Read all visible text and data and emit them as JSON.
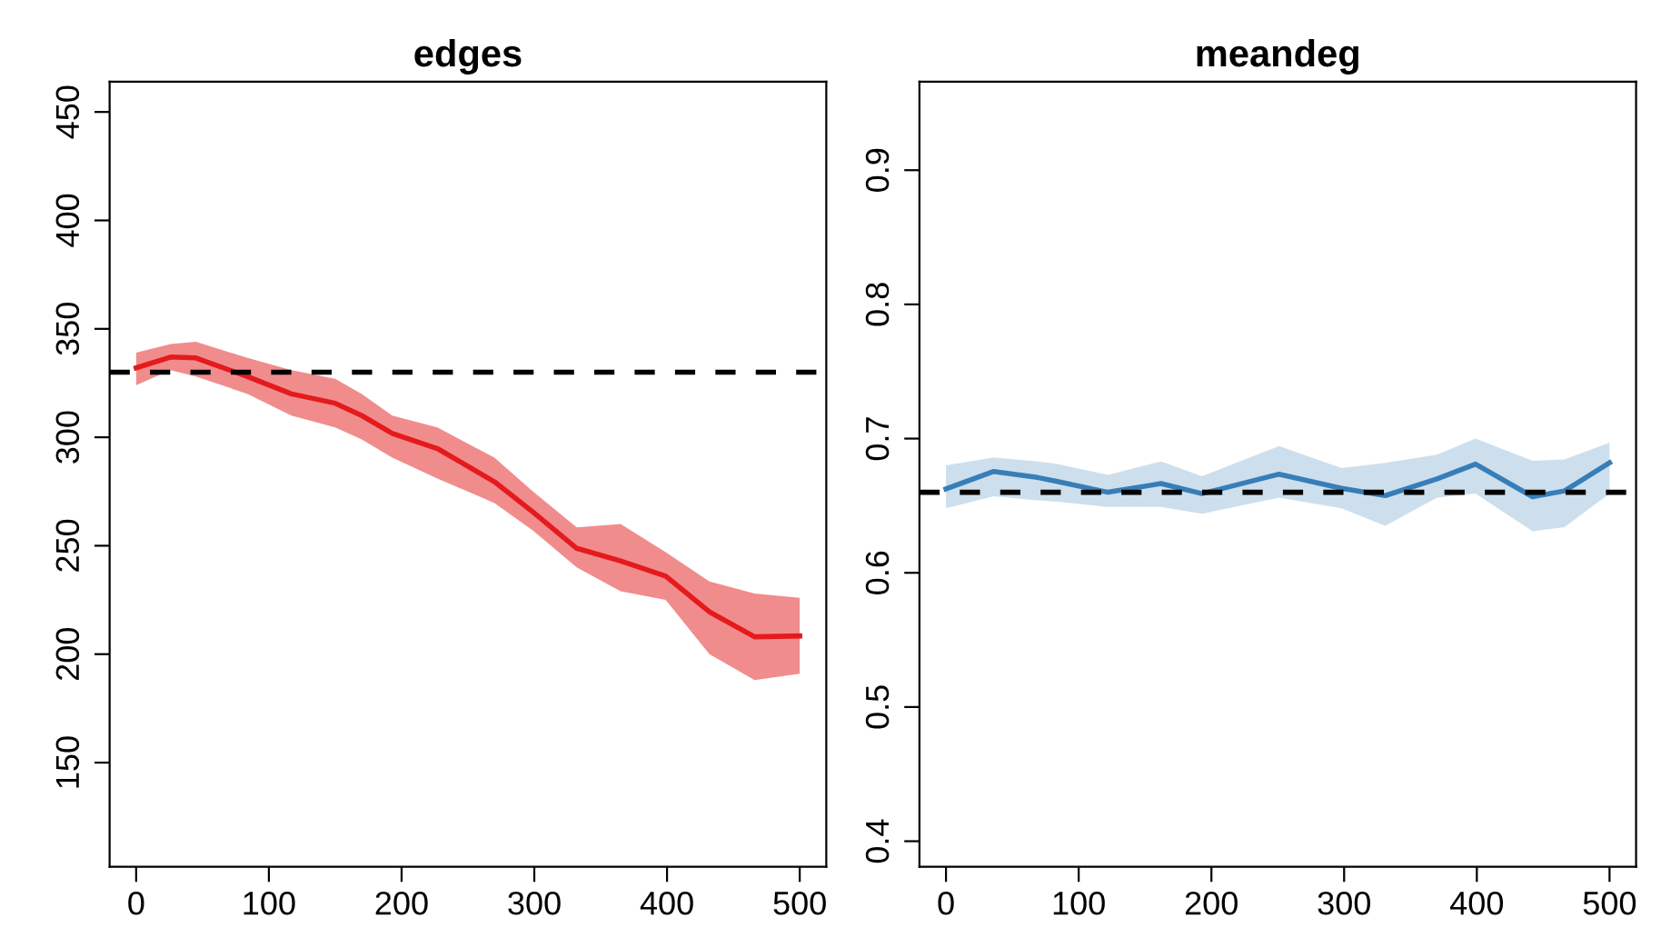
{
  "chart_data": [
    {
      "type": "line",
      "title": "edges",
      "x": [
        0,
        26,
        45,
        84,
        117,
        150,
        170,
        193,
        227,
        270,
        299,
        332,
        365,
        399,
        432,
        466,
        500
      ],
      "xlim": [
        -20,
        520
      ],
      "xticks": [
        0,
        100,
        200,
        300,
        400,
        500
      ],
      "ylim": [
        102,
        464
      ],
      "yticks": [
        150,
        200,
        250,
        300,
        350,
        400,
        450
      ],
      "grid": false,
      "series": [
        {
          "color": "#e41a1c",
          "values": [
            332,
            337,
            336.6,
            328,
            320,
            315.7,
            310,
            301.8,
            294.8,
            279.5,
            265.5,
            248.8,
            243,
            236,
            219.5,
            208,
            208.4
          ],
          "upper": [
            339,
            343,
            344,
            336.6,
            331,
            327,
            320,
            310,
            304.5,
            290.6,
            275,
            258.5,
            260,
            247,
            233.5,
            228,
            226
          ],
          "lower": [
            324,
            331,
            328,
            320,
            310,
            304.5,
            299,
            290.6,
            281,
            269.7,
            257,
            240,
            229,
            225,
            200,
            188,
            191
          ]
        }
      ],
      "ref_lines": [
        {
          "axis": "y",
          "value": 330,
          "line_style": "dashed",
          "color": "#000000"
        }
      ]
    },
    {
      "type": "line",
      "title": "meandeg",
      "x": [
        0,
        36,
        69,
        84,
        122,
        162,
        193,
        251,
        298,
        331,
        370,
        399,
        442,
        466,
        500
      ],
      "xlim": [
        -20,
        520
      ],
      "xticks": [
        0,
        100,
        200,
        300,
        400,
        500
      ],
      "ylim": [
        0.381,
        0.966
      ],
      "yticks": [
        0.4,
        0.5,
        0.6,
        0.7,
        0.8,
        0.9
      ],
      "grid": false,
      "series": [
        {
          "color": "#377eb8",
          "values": [
            0.6625,
            0.6755,
            0.671,
            0.668,
            0.66,
            0.6665,
            0.659,
            0.6735,
            0.663,
            0.6575,
            0.67,
            0.681,
            0.6567,
            0.661,
            0.682
          ],
          "upper": [
            0.68,
            0.686,
            0.683,
            0.681,
            0.673,
            0.683,
            0.672,
            0.6945,
            0.678,
            0.682,
            0.688,
            0.7,
            0.6835,
            0.6845,
            0.697
          ],
          "lower": [
            0.648,
            0.657,
            0.654,
            0.653,
            0.649,
            0.649,
            0.644,
            0.656,
            0.648,
            0.635,
            0.656,
            0.659,
            0.631,
            0.634,
            0.659
          ]
        }
      ],
      "ref_lines": [
        {
          "axis": "y",
          "value": 0.66,
          "line_style": "dashed",
          "color": "#000000"
        }
      ]
    }
  ]
}
